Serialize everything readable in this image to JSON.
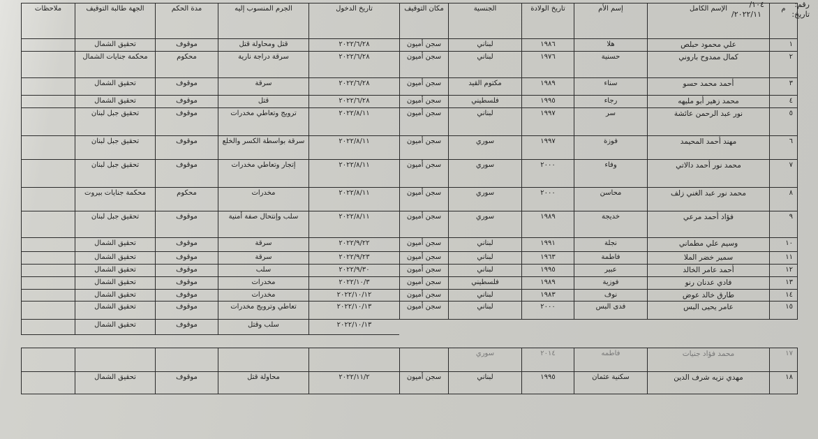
{
  "meta": {
    "number_label": "رقم:",
    "number_value": "١٠٤/",
    "date_label": "تاريخ:",
    "date_value": "٢٠٢٢/١١/"
  },
  "table": {
    "headers": [
      "م",
      "الإسم الكامل",
      "إسم الأم",
      "تاريخ الولادة",
      "الجنسية",
      "مكان التوقيف",
      "تاريخ الدخول",
      "الجرم المنسوب إليه",
      "مدة الحكم",
      "الجهة طالبة التوقيف",
      "ملاحظات"
    ],
    "rows": [
      [
        "١",
        "علي محمود حبلص",
        "هلا",
        "١٩٨٦",
        "لبناني",
        "سجن أميون",
        "٢٠٢٢/٦/٢٨",
        "قتل ومحاولة قتل",
        "موقوف",
        "تحقيق الشمال",
        ""
      ],
      [
        "٢",
        "كمال ممدوح باروني",
        "حسنية",
        "١٩٧٦",
        "لبناني",
        "سجن أميون",
        "٢٠٢٢/٦/٢٨",
        "سرقة دراجة نارية",
        "محكوم",
        "محكمة جنايات الشمال",
        ""
      ],
      [
        "٣",
        "أحمد محمد حسو",
        "سناء",
        "١٩٨٩",
        "مكتوم القيد",
        "سجن أميون",
        "٢٠٢٢/٦/٢٨",
        "سرقة",
        "موقوف",
        "تحقيق الشمال",
        ""
      ],
      [
        "٤",
        "محمد زهير أبو مليهه",
        "رجاء",
        "١٩٩٥",
        "فلسطيني",
        "سجن أميون",
        "٢٠٢٢/٦/٢٨",
        "قتل",
        "موقوف",
        "تحقيق الشمال",
        ""
      ],
      [
        "٥",
        "نور عبد الرحمن عائشة",
        "سر",
        "١٩٩٧",
        "لبناني",
        "سجن أميون",
        "٢٠٢٢/٨/١١",
        "ترويج وتعاطي مخدرات",
        "موقوف",
        "تحقيق جبل لبنان",
        ""
      ],
      [
        "٦",
        "مهند أحمد المحيمد",
        "فوزة",
        "١٩٩٧",
        "سوري",
        "سجن أميون",
        "٢٠٢٢/٨/١١",
        "سرقة بواسطة الكسر والخلع",
        "موقوف",
        "تحقيق جبل لبنان",
        ""
      ],
      [
        "٧",
        "محمد نور أحمد دالاتي",
        "وفاء",
        "٢٠٠٠",
        "سوري",
        "سجن أميون",
        "٢٠٢٢/٨/١١",
        "إتجار وتعاطي مخدرات",
        "موقوف",
        "تحقيق جبل لبنان",
        ""
      ],
      [
        "٨",
        "محمد نور عبد الغني زلف",
        "محاسن",
        "٢٠٠٠",
        "سوري",
        "سجن أميون",
        "٢٠٢٢/٨/١١",
        "مخدرات",
        "محكوم",
        "محكمة جنايات بيروت",
        ""
      ],
      [
        "٩",
        "فؤاد أحمد مرعي",
        "خديجة",
        "١٩٨٩",
        "سوري",
        "سجن أميون",
        "٢٠٢٢/٨/١١",
        "سلب وإنتحال صفة أمنية",
        "موقوف",
        "تحقيق جبل لبنان",
        ""
      ],
      [
        "١٠",
        "وسيم علي مطماني",
        "نجلة",
        "١٩٩١",
        "لبناني",
        "سجن أميون",
        "٢٠٢٢/٩/٢٢",
        "سرقة",
        "موقوف",
        "تحقيق الشمال",
        ""
      ],
      [
        "١١",
        "سمير خضر الملا",
        "فاطمة",
        "١٩٦٣",
        "لبناني",
        "سجن أميون",
        "٢٠٢٢/٩/٢٣",
        "سرقة",
        "موقوف",
        "تحقيق الشمال",
        ""
      ],
      [
        "١٢",
        "أحمد عامر الخالد",
        "عبير",
        "١٩٩٥",
        "لبناني",
        "سجن أميون",
        "٢٠٢٢/٩/٣٠",
        "سلب",
        "موقوف",
        "تحقيق الشمال",
        ""
      ],
      [
        "١٣",
        "فادي عدنان رنو",
        "فوزية",
        "١٩٨٩",
        "فلسطيني",
        "سجن أميون",
        "٢٠٢٢/١٠/٣",
        "مخدرات",
        "موقوف",
        "تحقيق الشمال",
        ""
      ],
      [
        "١٤",
        "طارق خالد عوض",
        "نوف",
        "١٩٨٣",
        "لبناني",
        "سجن أميون",
        "٢٠٢٢/١٠/١٢",
        "مخدرات",
        "موقوف",
        "تحقيق الشمال",
        ""
      ],
      [
        "١٥",
        "عامر يحيى البس",
        "فدى البس",
        "٢٠٠٠",
        "لبناني",
        "سجن أميون",
        "٢٠٢٢/١٠/١٣",
        "تعاطي وترويج مخدرات",
        "موقوف",
        "تحقيق الشمال",
        ""
      ],
      [
        "",
        "",
        "",
        "",
        "",
        "",
        "٢٠٢٢/١٠/١٣",
        "سلب وقتل",
        "موقوف",
        "تحقيق الشمال",
        ""
      ],
      [
        "١٧",
        "محمد فؤاد جنيات",
        "فاطمه",
        "٢٠١٤",
        "سوري",
        "",
        "",
        "",
        "",
        "",
        ""
      ],
      [
        "١٨",
        "مهدي نزيه شرف الدين",
        "سكنية عثمان",
        "١٩٩٥",
        "لبناني",
        "سجن أميون",
        "٢٠٢٢/١١/٢",
        "محاولة قتل",
        "موقوف",
        "تحقيق الشمال",
        ""
      ]
    ]
  }
}
